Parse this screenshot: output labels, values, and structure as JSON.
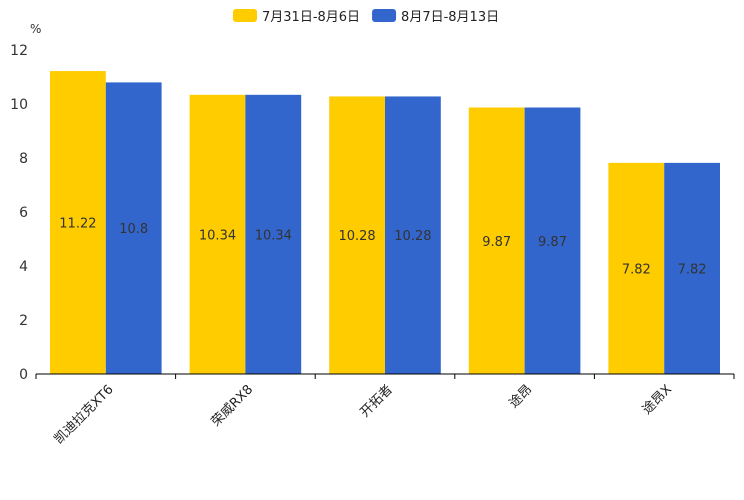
{
  "chart_data": {
    "type": "bar",
    "title": "",
    "ylabel": "%",
    "xlabel": "",
    "ylim": [
      0,
      12
    ],
    "yticks": [
      0,
      2,
      4,
      6,
      8,
      10,
      12
    ],
    "categories": [
      "凯迪拉克XT6",
      "荣威RX8",
      "开拓者",
      "途昂",
      "途昂X"
    ],
    "series": [
      {
        "name": "7月31日-8月6日",
        "color": "#FFCC00",
        "values": [
          11.22,
          10.34,
          10.28,
          9.87,
          7.82
        ]
      },
      {
        "name": "8月7日-8月13日",
        "color": "#3366CC",
        "values": [
          10.8,
          10.34,
          10.28,
          9.87,
          7.82
        ]
      }
    ],
    "legend_position": "top",
    "grid": false
  }
}
